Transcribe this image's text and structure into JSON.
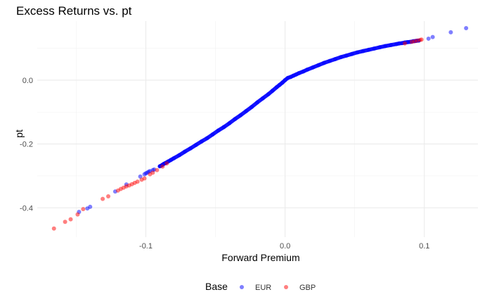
{
  "chart_data": {
    "type": "scatter",
    "title": "Excess Returns vs. pt",
    "xlabel": "Forward Premium",
    "ylabel": "pt",
    "xlim": [
      -0.178,
      0.1385
    ],
    "ylim": [
      -0.492,
      0.185
    ],
    "x_ticks": [
      -0.1,
      0.0,
      0.1
    ],
    "x_tick_labels": [
      "-0.1",
      "0.0",
      "0.1"
    ],
    "y_ticks": [
      -0.4,
      -0.2,
      0.0
    ],
    "y_tick_labels": [
      "-0.4",
      "-0.2",
      "0.0"
    ],
    "x_minor": [
      -0.15,
      -0.05,
      0.05
    ],
    "y_minor": [
      -0.3,
      -0.1,
      0.1
    ],
    "grid": true,
    "legend": {
      "title": "Base",
      "position": "bottom",
      "entries": [
        {
          "label": "EUR",
          "color": "#0000ff"
        },
        {
          "label": "GBP",
          "color": "#ff0000"
        }
      ]
    },
    "series": [
      {
        "name": "EUR",
        "color": "#0000ff",
        "x": [
          -0.148,
          -0.142,
          -0.14,
          -0.122,
          -0.114,
          -0.104,
          -0.101,
          -0.1,
          -0.099,
          -0.098,
          -0.097,
          -0.095,
          -0.094,
          -0.09,
          -0.089,
          -0.088,
          -0.087,
          -0.086,
          -0.084,
          -0.082,
          -0.08,
          -0.076,
          -0.072,
          -0.068,
          -0.064,
          -0.06,
          -0.056,
          -0.052,
          -0.048,
          -0.044,
          -0.04,
          -0.036,
          -0.032,
          -0.028,
          -0.024,
          -0.02,
          -0.016,
          -0.012,
          -0.009,
          -0.006,
          -0.004,
          -0.002,
          0.0,
          0.002,
          0.004,
          0.006,
          0.008,
          0.01,
          0.013,
          0.016,
          0.02,
          0.024,
          0.028,
          0.032,
          0.036,
          0.04,
          0.044,
          0.048,
          0.052,
          0.056,
          0.06,
          0.064,
          0.068,
          0.072,
          0.076,
          0.08,
          0.082,
          0.084,
          0.086,
          0.088,
          0.09,
          0.092,
          0.094,
          0.096,
          0.103,
          0.106,
          0.119,
          0.13
        ],
        "y": [
          -0.413,
          -0.402,
          -0.397,
          -0.349,
          -0.327,
          -0.302,
          -0.295,
          -0.292,
          -0.29,
          -0.287,
          -0.285,
          -0.282,
          -0.28,
          -0.27,
          -0.268,
          -0.265,
          -0.262,
          -0.26,
          -0.255,
          -0.25,
          -0.245,
          -0.235,
          -0.224,
          -0.214,
          -0.203,
          -0.192,
          -0.182,
          -0.17,
          -0.158,
          -0.147,
          -0.135,
          -0.122,
          -0.11,
          -0.097,
          -0.084,
          -0.07,
          -0.057,
          -0.044,
          -0.033,
          -0.022,
          -0.015,
          -0.008,
          0.0,
          0.007,
          0.01,
          0.014,
          0.018,
          0.022,
          0.027,
          0.033,
          0.04,
          0.047,
          0.054,
          0.06,
          0.066,
          0.072,
          0.077,
          0.082,
          0.087,
          0.091,
          0.095,
          0.099,
          0.103,
          0.107,
          0.11,
          0.113,
          0.115,
          0.116,
          0.118,
          0.119,
          0.12,
          0.122,
          0.123,
          0.124,
          0.13,
          0.135,
          0.15,
          0.163
        ]
      },
      {
        "name": "GBP",
        "color": "#ff0000",
        "x": [
          -0.166,
          -0.158,
          -0.154,
          -0.149,
          -0.145,
          -0.131,
          -0.127,
          -0.12,
          -0.118,
          -0.116,
          -0.114,
          -0.112,
          -0.11,
          -0.108,
          -0.106,
          -0.103,
          -0.101,
          -0.097,
          -0.095,
          -0.092,
          -0.088,
          -0.085,
          0.086,
          0.091,
          0.093,
          0.095,
          0.097,
          0.098
        ],
        "y": [
          -0.465,
          -0.444,
          -0.436,
          -0.421,
          -0.404,
          -0.372,
          -0.364,
          -0.346,
          -0.341,
          -0.337,
          -0.333,
          -0.33,
          -0.326,
          -0.322,
          -0.318,
          -0.312,
          -0.308,
          -0.295,
          -0.29,
          -0.282,
          -0.271,
          -0.261,
          0.115,
          0.12,
          0.122,
          0.124,
          0.126,
          0.127
        ]
      }
    ]
  }
}
